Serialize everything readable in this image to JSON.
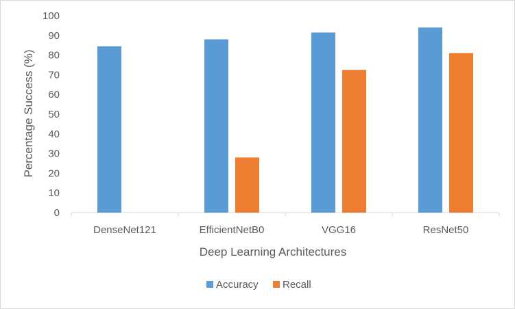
{
  "chart_data": {
    "type": "bar",
    "title": "",
    "xlabel": "Deep Learning Architectures",
    "ylabel": "Percentage Success (%)",
    "categories": [
      "DenseNet121",
      "EfficientNetB0",
      "VGG16",
      "ResNet50"
    ],
    "series": [
      {
        "name": "Accuracy",
        "color": "#5b9bd5",
        "values": [
          84.5,
          88,
          91.5,
          94
        ]
      },
      {
        "name": "Recall",
        "color": "#ed7d31",
        "values": [
          null,
          28,
          72.5,
          81
        ]
      }
    ],
    "ylim": [
      0,
      100
    ],
    "yticks": [
      0,
      10,
      20,
      30,
      40,
      50,
      60,
      70,
      80,
      90,
      100
    ],
    "grid": false,
    "legend_position": "bottom"
  }
}
